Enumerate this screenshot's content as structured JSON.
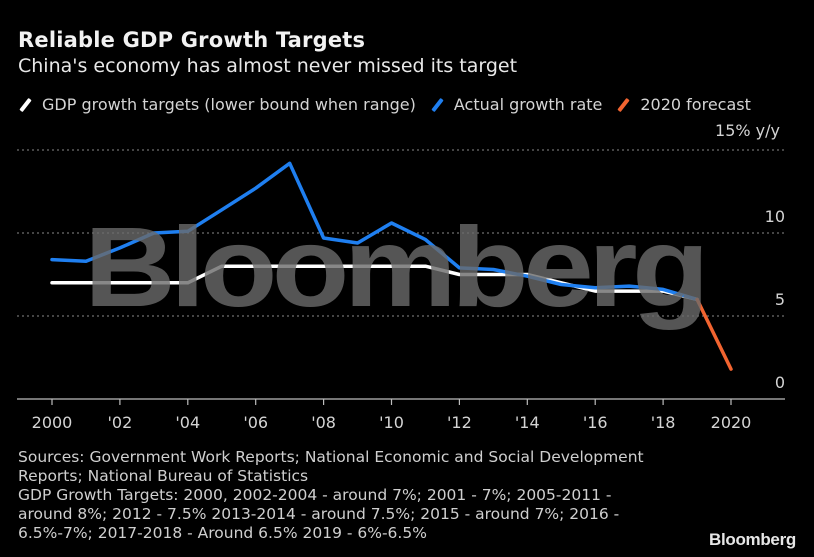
{
  "header": {
    "title": "Reliable GDP Growth Targets",
    "subtitle": "China's economy has almost never missed its target"
  },
  "legend": [
    {
      "label": "GDP growth targets (lower bound when range)",
      "color": "#ffffff"
    },
    {
      "label": "Actual growth rate",
      "color": "#1f7ff0"
    },
    {
      "label": "2020 forecast",
      "color": "#f26430"
    }
  ],
  "watermark": "Bloomberg",
  "footer": {
    "notes": [
      "Sources: Government Work Reports; National Economic and Social Development",
      "Reports; National Bureau of Statistics",
      "GDP Growth Targets: 2000, 2002-2004 - around 7%; 2001 - 7%; 2005-2011 -",
      "around 8%; 2012 - 7.5% 2013-2014 - around 7.5%; 2015 - around 7%; 2016 -",
      "6.5%-7%; 2017-2018 - Around 6.5% 2019 - 6%-6.5%"
    ],
    "brand": "Bloomberg"
  },
  "chart_data": {
    "type": "line",
    "title": "Reliable GDP Growth Targets",
    "subtitle": "China's economy has almost never missed its target",
    "xlabel": "",
    "ylabel": "15% y/y",
    "unit_label": "15% y/y",
    "ylim": [
      0,
      15
    ],
    "xlim": [
      1999,
      2021
    ],
    "yticks": [
      0,
      5,
      10,
      15
    ],
    "ytick_labels": [
      "0",
      "5",
      "10",
      ""
    ],
    "xticks": [
      2000,
      2002,
      2004,
      2006,
      2008,
      2010,
      2012,
      2014,
      2016,
      2018,
      2020
    ],
    "xtick_labels": [
      "2000",
      "'02",
      "'04",
      "'06",
      "'08",
      "'10",
      "'12",
      "'14",
      "'16",
      "'18",
      "2020"
    ],
    "grid": true,
    "legend_position": "top-left",
    "series": [
      {
        "name": "GDP growth targets (lower bound when range)",
        "color": "#ffffff",
        "x": [
          2000,
          2001,
          2002,
          2003,
          2004,
          2005,
          2006,
          2007,
          2008,
          2009,
          2010,
          2011,
          2012,
          2013,
          2014,
          2015,
          2016,
          2017,
          2018,
          2019
        ],
        "values": [
          7,
          7,
          7,
          7,
          7,
          8,
          8,
          8,
          8,
          8,
          8,
          8,
          7.5,
          7.5,
          7.5,
          7,
          6.5,
          6.5,
          6.5,
          6
        ]
      },
      {
        "name": "Actual growth rate",
        "color": "#1f7ff0",
        "x": [
          2000,
          2001,
          2002,
          2003,
          2004,
          2005,
          2006,
          2007,
          2008,
          2009,
          2010,
          2011,
          2012,
          2013,
          2014,
          2015,
          2016,
          2017,
          2018,
          2019
        ],
        "values": [
          8.4,
          8.3,
          9.1,
          10.0,
          10.1,
          11.4,
          12.7,
          14.2,
          9.7,
          9.4,
          10.6,
          9.6,
          7.9,
          7.8,
          7.4,
          6.9,
          6.7,
          6.8,
          6.6,
          6.0
        ]
      },
      {
        "name": "2020 forecast",
        "color": "#f26430",
        "x": [
          2019,
          2020
        ],
        "values": [
          6.0,
          1.8
        ]
      }
    ]
  }
}
